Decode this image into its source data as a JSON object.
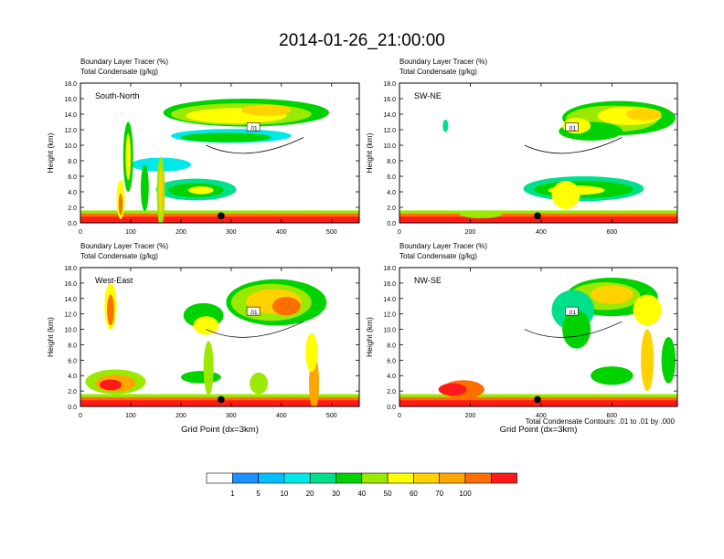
{
  "title": "2014-01-26_21:00:00",
  "footnote": "Total Condensate Contours: .01 to .01 by .000",
  "colorbar": {
    "labels": [
      "1",
      "5",
      "10",
      "20",
      "30",
      "40",
      "50",
      "60",
      "70",
      "100"
    ],
    "colors": [
      "#ffffff",
      "#1e90ff",
      "#00bfff",
      "#00e8e8",
      "#00e08c",
      "#00d200",
      "#9be800",
      "#ffff00",
      "#ffd200",
      "#ffa500",
      "#ff6e00",
      "#ff1a1a"
    ]
  },
  "chart_data": [
    {
      "type": "cross-section",
      "panel_label": "South-North",
      "title_lines": [
        "Boundary Layer Tracer   (%)",
        "Total Condensate   (g/kg)"
      ],
      "ylabel": "Height (km)",
      "xlabel": "",
      "xlim": [
        0,
        555
      ],
      "ylim": [
        0,
        18
      ],
      "xticks": [
        0,
        100,
        200,
        300,
        400,
        500
      ],
      "yticks": [
        "0.0",
        "2.0",
        "4.0",
        "6.0",
        "8.0",
        "10.0",
        "12.0",
        "14.0",
        "16.0",
        "18.0"
      ],
      "marker_x": 280,
      "contour_label": "0.01"
    },
    {
      "type": "cross-section",
      "panel_label": "SW-NE",
      "title_lines": [
        "Boundary Layer Tracer   (%)",
        "Total Condensate   (g/kg)"
      ],
      "ylabel": "Height (km)",
      "xlabel": "",
      "xlim": [
        0,
        785
      ],
      "ylim": [
        0,
        18
      ],
      "xticks": [
        0,
        200,
        400,
        600
      ],
      "yticks": [
        "0.0",
        "2.0",
        "4.0",
        "6.0",
        "8.0",
        "10.0",
        "12.0",
        "14.0",
        "16.0",
        "18.0"
      ],
      "marker_x": 390,
      "contour_label": "0.01"
    },
    {
      "type": "cross-section",
      "panel_label": "West-East",
      "title_lines": [
        "Boundary Layer Tracer   (%)",
        "Total Condensate   (g/kg)"
      ],
      "ylabel": "Height (km)",
      "xlabel": "Grid Point (dx=3km)",
      "xlim": [
        0,
        555
      ],
      "ylim": [
        0,
        18
      ],
      "xticks": [
        0,
        100,
        200,
        300,
        400,
        500
      ],
      "yticks": [
        "0.0",
        "2.0",
        "4.0",
        "6.0",
        "8.0",
        "10.0",
        "12.0",
        "14.0",
        "16.0",
        "18.0"
      ],
      "marker_x": 280,
      "contour_label": "0.01"
    },
    {
      "type": "cross-section",
      "panel_label": "NW-SE",
      "title_lines": [
        "Boundary Layer Tracer   (%)",
        "Total Condensate   (g/kg)"
      ],
      "ylabel": "Height (km)",
      "xlabel": "Grid Point (dx=3km)",
      "xlim": [
        0,
        785
      ],
      "ylim": [
        0,
        18
      ],
      "xticks": [
        0,
        200,
        400,
        600
      ],
      "yticks": [
        "0.0",
        "2.0",
        "4.0",
        "6.0",
        "8.0",
        "10.0",
        "12.0",
        "14.0",
        "16.0",
        "18.0"
      ],
      "marker_x": 390,
      "contour_label": "0.01"
    }
  ]
}
